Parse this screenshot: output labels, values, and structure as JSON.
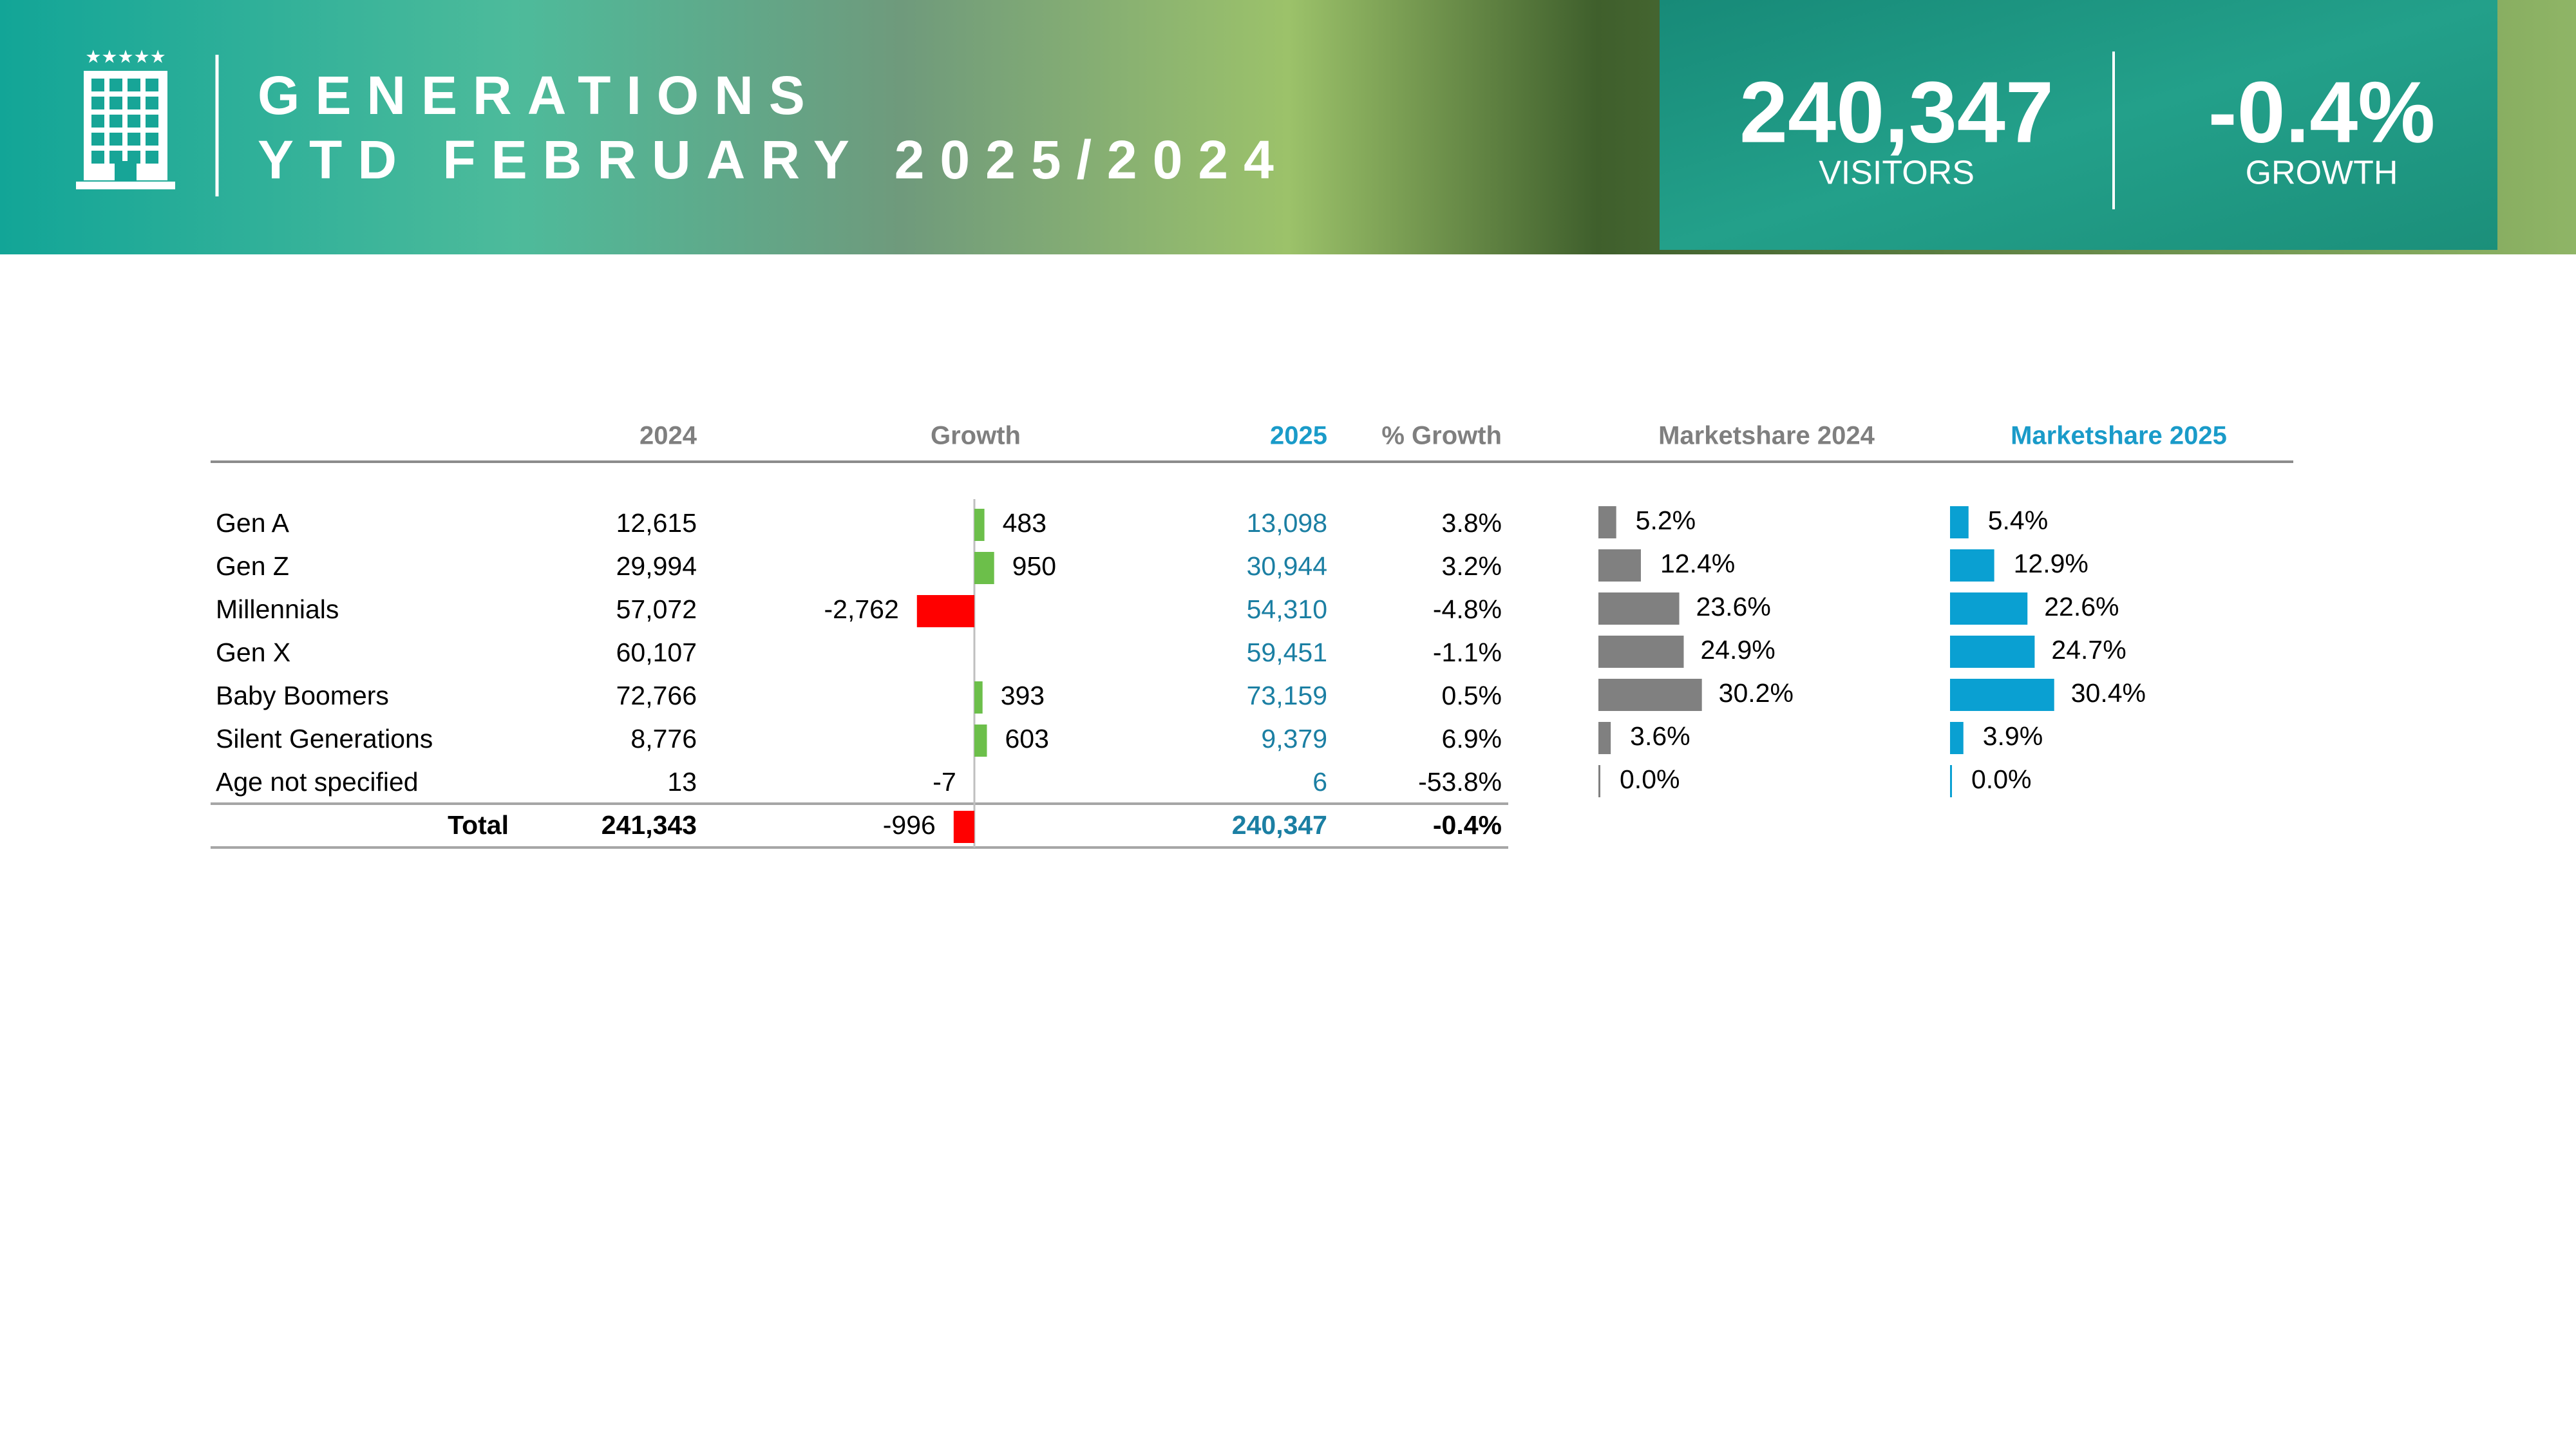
{
  "header": {
    "title": "GENERATIONS",
    "subtitle": "YTD FEBRUARY 2025/2024"
  },
  "kpis": [
    {
      "value": "240,347",
      "label": "VISITORS"
    },
    {
      "value": "-0.4%",
      "label": "GROWTH"
    }
  ],
  "table": {
    "columns": [
      "2024",
      "Growth",
      "2025",
      "% Growth",
      "Marketshare 2024",
      "Marketshare 2025"
    ],
    "rows": [
      {
        "name": "Gen A",
        "y2024": "12,615",
        "growth": "483",
        "y2025": "13,098",
        "pct": "3.8%",
        "ms2024": "5.2%",
        "ms2025": "5.4%"
      },
      {
        "name": "Gen Z",
        "y2024": "29,994",
        "growth": "950",
        "y2025": "30,944",
        "pct": "3.2%",
        "ms2024": "12.4%",
        "ms2025": "12.9%"
      },
      {
        "name": "Millennials",
        "y2024": "57,072",
        "growth": "-2,762",
        "y2025": "54,310",
        "pct": "-4.8%",
        "ms2024": "23.6%",
        "ms2025": "22.6%"
      },
      {
        "name": "Gen X",
        "y2024": "60,107",
        "growth": null,
        "y2025": "59,451",
        "pct": "-1.1%",
        "ms2024": "24.9%",
        "ms2025": "24.7%"
      },
      {
        "name": "Baby Boomers",
        "y2024": "72,766",
        "growth": "393",
        "y2025": "73,159",
        "pct": "0.5%",
        "ms2024": "30.2%",
        "ms2025": "30.4%"
      },
      {
        "name": "Silent Generations",
        "y2024": "8,776",
        "growth": "603",
        "y2025": "9,379",
        "pct": "6.9%",
        "ms2024": "3.6%",
        "ms2025": "3.9%"
      },
      {
        "name": "Age not specified",
        "y2024": "13",
        "growth": "-7",
        "y2025": "6",
        "pct": "-53.8%",
        "ms2024": "0.0%",
        "ms2025": "0.0%"
      }
    ],
    "total": {
      "name": "Total",
      "y2024": "241,343",
      "growth": "-996",
      "y2025": "240,347",
      "pct": "-0.4%"
    }
  }
}
